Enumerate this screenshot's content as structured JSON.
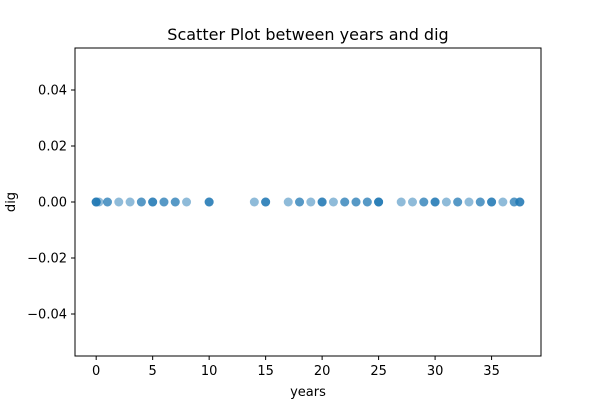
{
  "chart_data": {
    "type": "scatter",
    "title": "Scatter Plot between years and dig",
    "xlabel": "years",
    "ylabel": "dig",
    "xlim": [
      -1.875,
      39.375
    ],
    "ylim": [
      -0.055,
      0.055
    ],
    "xticks": [
      0,
      5,
      10,
      15,
      20,
      25,
      30,
      35
    ],
    "xtick_labels": [
      "0",
      "5",
      "10",
      "15",
      "20",
      "25",
      "30",
      "35"
    ],
    "yticks": [
      -0.04,
      -0.02,
      0.0,
      0.02,
      0.04
    ],
    "ytick_labels": [
      "−0.04",
      "−0.02",
      "0.00",
      "0.02",
      "0.04"
    ],
    "grid": false,
    "marker_color": "#1f77b4",
    "marker_alpha": 0.5,
    "points": [
      {
        "x": 0,
        "y": 0
      },
      {
        "x": 0,
        "y": 0
      },
      {
        "x": 0,
        "y": 0
      },
      {
        "x": 0,
        "y": 0
      },
      {
        "x": 0.25,
        "y": 0
      },
      {
        "x": 1,
        "y": 0
      },
      {
        "x": 1,
        "y": 0
      },
      {
        "x": 2,
        "y": 0
      },
      {
        "x": 3,
        "y": 0
      },
      {
        "x": 4,
        "y": 0
      },
      {
        "x": 4,
        "y": 0
      },
      {
        "x": 5,
        "y": 0
      },
      {
        "x": 5,
        "y": 0
      },
      {
        "x": 5,
        "y": 0
      },
      {
        "x": 6,
        "y": 0
      },
      {
        "x": 6,
        "y": 0
      },
      {
        "x": 7,
        "y": 0
      },
      {
        "x": 7,
        "y": 0
      },
      {
        "x": 8,
        "y": 0
      },
      {
        "x": 10,
        "y": 0
      },
      {
        "x": 10,
        "y": 0
      },
      {
        "x": 10,
        "y": 0
      },
      {
        "x": 14,
        "y": 0
      },
      {
        "x": 15,
        "y": 0
      },
      {
        "x": 15,
        "y": 0
      },
      {
        "x": 15,
        "y": 0
      },
      {
        "x": 17,
        "y": 0
      },
      {
        "x": 18,
        "y": 0
      },
      {
        "x": 18,
        "y": 0
      },
      {
        "x": 19,
        "y": 0
      },
      {
        "x": 20,
        "y": 0
      },
      {
        "x": 20,
        "y": 0
      },
      {
        "x": 20,
        "y": 0
      },
      {
        "x": 21,
        "y": 0
      },
      {
        "x": 22,
        "y": 0
      },
      {
        "x": 22,
        "y": 0
      },
      {
        "x": 23,
        "y": 0
      },
      {
        "x": 23,
        "y": 0
      },
      {
        "x": 24,
        "y": 0
      },
      {
        "x": 24,
        "y": 0
      },
      {
        "x": 25,
        "y": 0
      },
      {
        "x": 25,
        "y": 0
      },
      {
        "x": 25,
        "y": 0
      },
      {
        "x": 25,
        "y": 0
      },
      {
        "x": 27,
        "y": 0
      },
      {
        "x": 28,
        "y": 0
      },
      {
        "x": 29,
        "y": 0
      },
      {
        "x": 29,
        "y": 0
      },
      {
        "x": 30,
        "y": 0
      },
      {
        "x": 30,
        "y": 0
      },
      {
        "x": 30,
        "y": 0
      },
      {
        "x": 31,
        "y": 0
      },
      {
        "x": 32,
        "y": 0
      },
      {
        "x": 32,
        "y": 0
      },
      {
        "x": 33,
        "y": 0
      },
      {
        "x": 34,
        "y": 0
      },
      {
        "x": 34,
        "y": 0
      },
      {
        "x": 35,
        "y": 0
      },
      {
        "x": 35,
        "y": 0
      },
      {
        "x": 35,
        "y": 0
      },
      {
        "x": 36,
        "y": 0
      },
      {
        "x": 37,
        "y": 0
      },
      {
        "x": 37,
        "y": 0
      },
      {
        "x": 37.5,
        "y": 0
      },
      {
        "x": 37.5,
        "y": 0
      },
      {
        "x": 37.5,
        "y": 0
      }
    ]
  }
}
